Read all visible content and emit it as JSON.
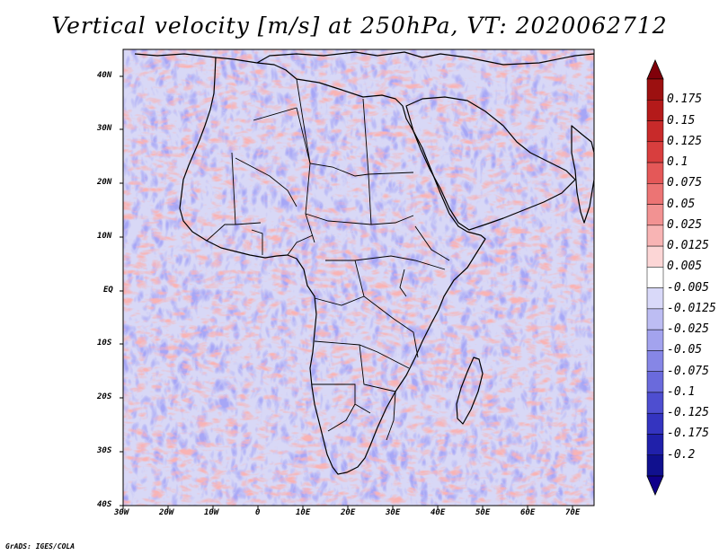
{
  "title": "Vertical velocity [m/s] at 250hPa, VT: 2020062712",
  "credit": "GrADS: IGES/COLA",
  "lon_ticks": [
    "30W",
    "20W",
    "10W",
    "0",
    "10E",
    "20E",
    "30E",
    "40E",
    "50E",
    "60E",
    "70E"
  ],
  "lat_ticks": [
    "40N",
    "30N",
    "20N",
    "10N",
    "EQ",
    "10S",
    "20S",
    "30S",
    "40S"
  ],
  "colorbar": {
    "labels": [
      "0.175",
      "0.15",
      "0.125",
      "0.1",
      "0.075",
      "0.05",
      "0.025",
      "0.0125",
      "0.005",
      "-0.005",
      "-0.0125",
      "-0.025",
      "-0.05",
      "-0.075",
      "-0.1",
      "-0.125",
      "-0.175",
      "-0.2"
    ],
    "colors": [
      "#9c1010",
      "#b41a1a",
      "#c82a2a",
      "#d83e3e",
      "#e45858",
      "#ec7474",
      "#f29292",
      "#f8b4b4",
      "#fcd6d6",
      "#ffffff",
      "#d9d9f9",
      "#bdbdf3",
      "#a3a3ee",
      "#8686e6",
      "#6a6adc",
      "#4e4ed0",
      "#3434c0",
      "#2020aa",
      "#10108e"
    ],
    "top_arrow_color": "#80000a",
    "bottom_arrow_color": "#10008a"
  }
}
